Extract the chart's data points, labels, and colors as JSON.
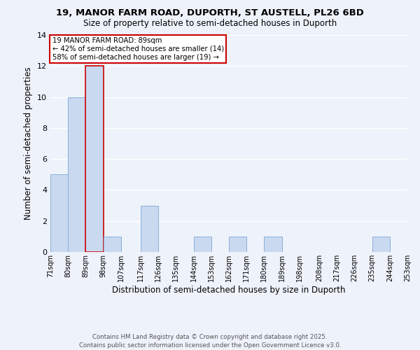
{
  "title_line1": "19, MANOR FARM ROAD, DUPORTH, ST AUSTELL, PL26 6BD",
  "title_line2": "Size of property relative to semi-detached houses in Duporth",
  "xlabel": "Distribution of semi-detached houses by size in Duporth",
  "ylabel": "Number of semi-detached properties",
  "bins": [
    71,
    80,
    89,
    98,
    107,
    117,
    126,
    135,
    144,
    153,
    162,
    171,
    180,
    189,
    198,
    208,
    217,
    226,
    235,
    244,
    253
  ],
  "counts": [
    5,
    10,
    12,
    1,
    0,
    3,
    0,
    0,
    1,
    0,
    1,
    0,
    1,
    0,
    0,
    0,
    0,
    0,
    1,
    0
  ],
  "highlight_bin_index": 2,
  "bar_color": "#c9d9f0",
  "highlight_edge_color": "#cc0000",
  "normal_edge_color": "#8ab0d8",
  "background_color": "#eef2fa",
  "grid_color": "#ffffff",
  "annotation_box_edge": "#cc0000",
  "annotation_text_line1": "19 MANOR FARM ROAD: 89sqm",
  "annotation_text_line2": "← 42% of semi-detached houses are smaller (14)",
  "annotation_text_line3": "58% of semi-detached houses are larger (19) →",
  "tick_labels": [
    "71sqm",
    "80sqm",
    "89sqm",
    "98sqm",
    "107sqm",
    "117sqm",
    "126sqm",
    "135sqm",
    "144sqm",
    "153sqm",
    "162sqm",
    "171sqm",
    "180sqm",
    "189sqm",
    "198sqm",
    "208sqm",
    "217sqm",
    "226sqm",
    "235sqm",
    "244sqm",
    "253sqm"
  ],
  "ylim": [
    0,
    14
  ],
  "yticks": [
    0,
    2,
    4,
    6,
    8,
    10,
    12,
    14
  ],
  "footer_line1": "Contains HM Land Registry data © Crown copyright and database right 2025.",
  "footer_line2": "Contains public sector information licensed under the Open Government Licence v3.0."
}
